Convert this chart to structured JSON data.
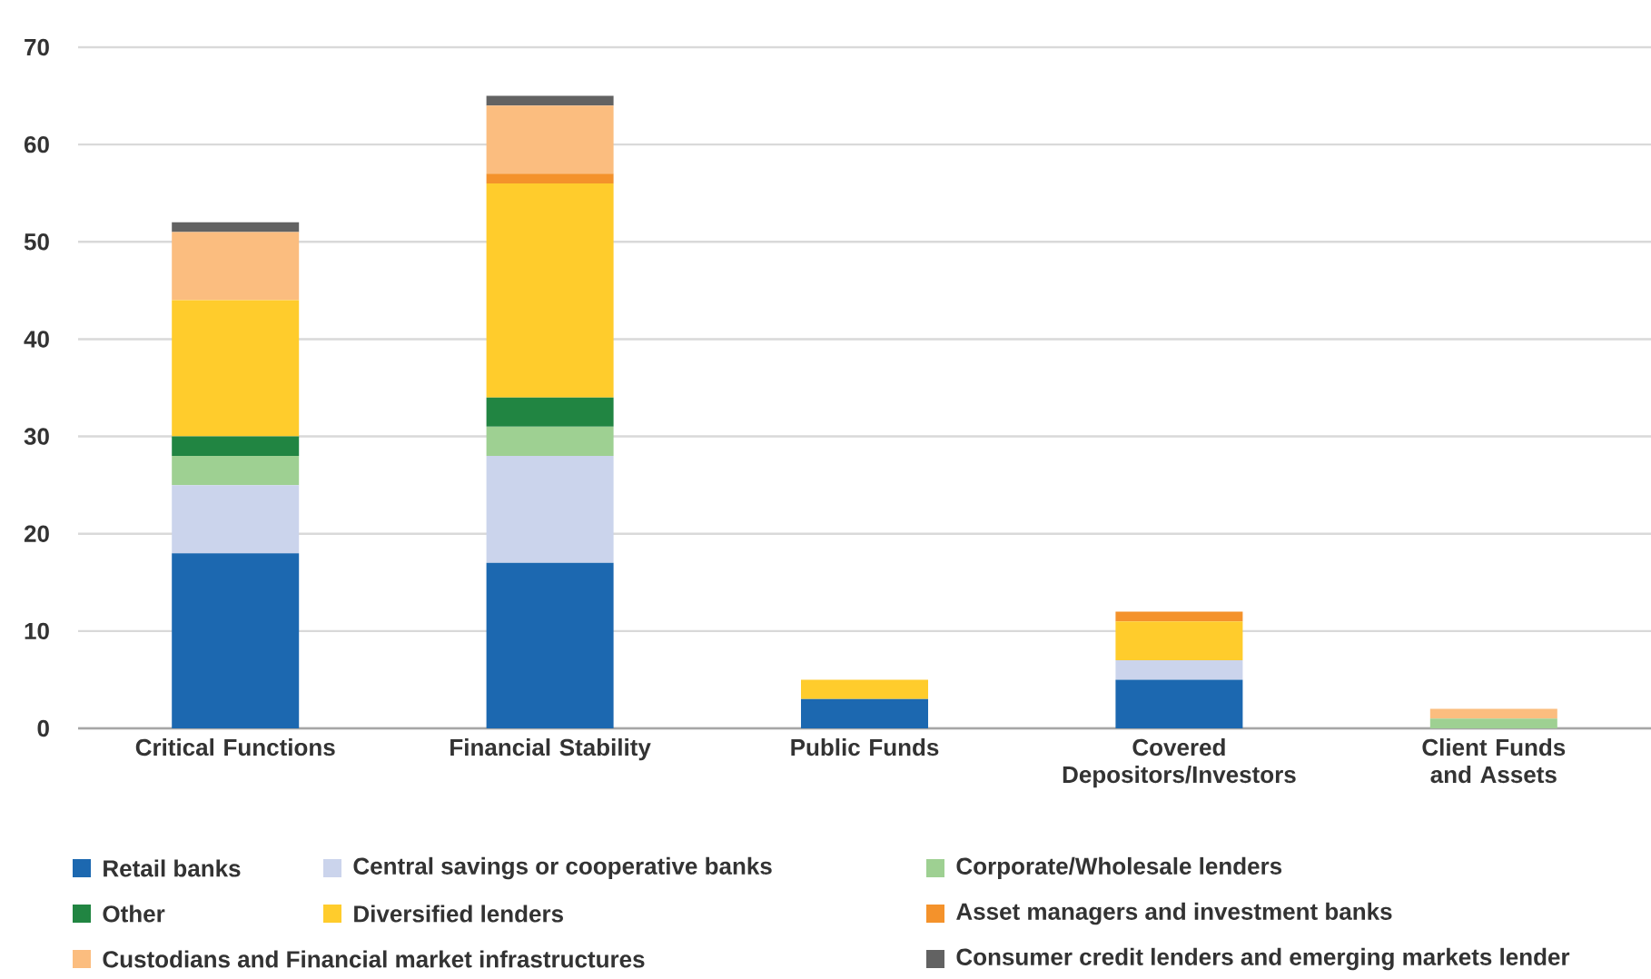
{
  "chart_data": {
    "type": "bar",
    "stacked": true,
    "categories": [
      "Critical Functions",
      "Financial Stability",
      "Public Funds",
      "Covered Depositors/Investors",
      "Client Funds and Assets"
    ],
    "ylim": [
      0,
      70
    ],
    "yticks": [
      0,
      10,
      20,
      30,
      40,
      50,
      60,
      70
    ],
    "grid": "y",
    "legend": "bottom",
    "series": [
      {
        "name": "Retail banks",
        "color": "#1c68b0",
        "values": [
          18,
          17,
          3,
          5,
          0
        ]
      },
      {
        "name": "Central savings or cooperative banks",
        "color": "#cbd4ec",
        "values": [
          7,
          11,
          0,
          2,
          0
        ]
      },
      {
        "name": "Corporate/Wholesale lenders",
        "color": "#9ed092",
        "values": [
          3,
          3,
          0,
          0,
          1
        ]
      },
      {
        "name": "Other",
        "color": "#218542",
        "values": [
          2,
          3,
          0,
          0,
          0
        ]
      },
      {
        "name": "Diversified lenders",
        "color": "#ffcc2c",
        "values": [
          14,
          22,
          2,
          4,
          0
        ]
      },
      {
        "name": "Asset managers and investment banks",
        "color": "#f4922b",
        "values": [
          0,
          1,
          0,
          1,
          0
        ]
      },
      {
        "name": "Custodians and Financial market infrastructures",
        "color": "#fbbd7f",
        "values": [
          7,
          7,
          0,
          0,
          1
        ]
      },
      {
        "name": "Consumer credit lenders  and emerging markets lender",
        "color": "#626262",
        "values": [
          1,
          1,
          0,
          0,
          0
        ]
      }
    ]
  }
}
